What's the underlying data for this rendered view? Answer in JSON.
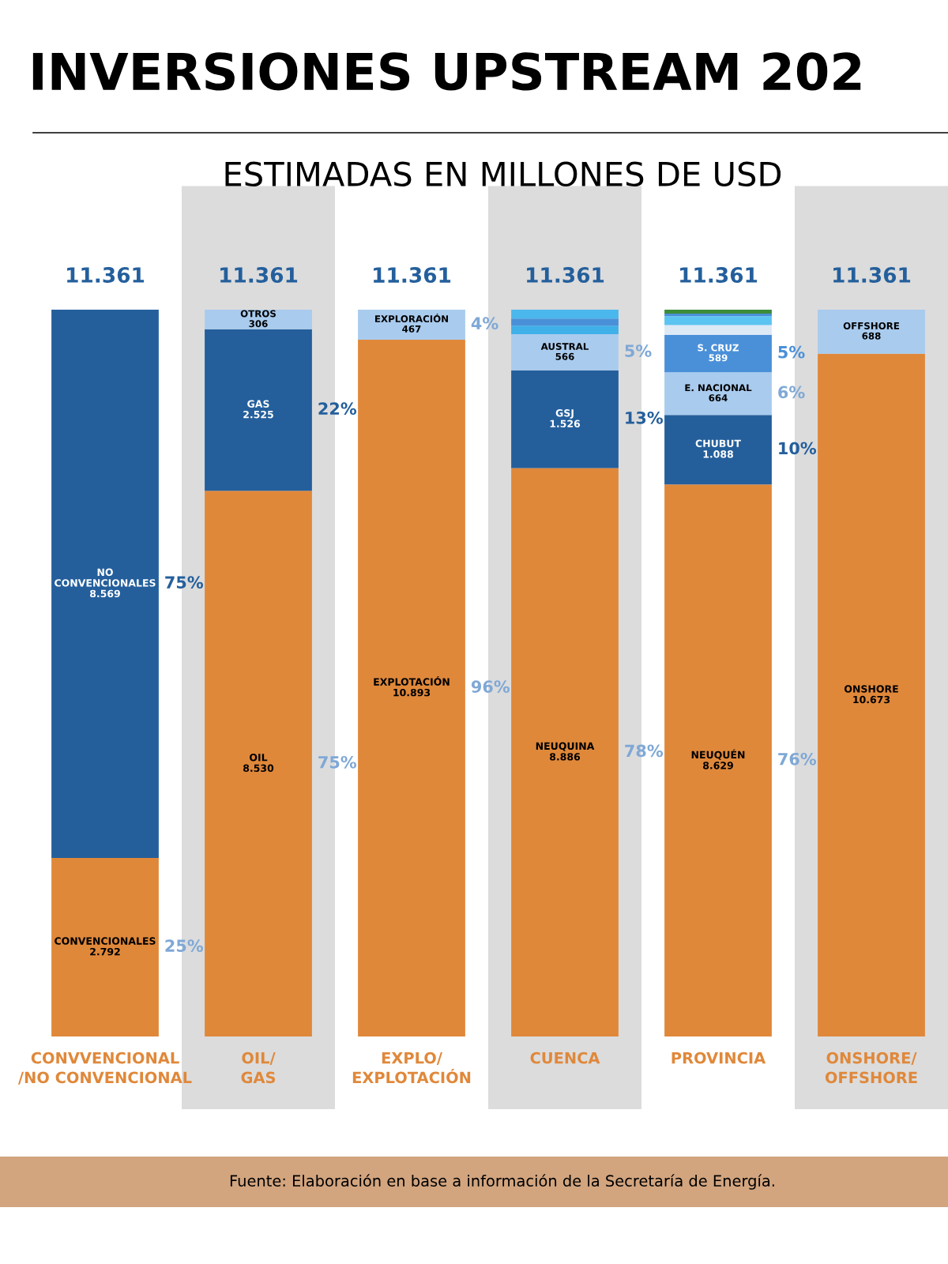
{
  "chart_data": {
    "type": "bar",
    "stacked": true,
    "title": "INVERSIONES UPSTREAM 202",
    "subtitle": "ESTIMADAS EN MILLONES DE USD",
    "categories": [
      "CONVVENCIONAL\n/NO CONVENCIONAL",
      "OIL/\nGAS",
      "EXPLO/\nEXPLOTACIÓN",
      "CUENCA",
      "PROVINCIA",
      "ONSHORE/\nOFFSHORE"
    ],
    "tick_labels": false,
    "grid": false,
    "series": [
      {
        "values": [
          2792,
          8530,
          10893,
          8886,
          8629,
          10673
        ],
        "colors": [
          "#e0883a",
          "#e0883a",
          "#e0883a",
          "#e0883a",
          "#e0883a",
          "#e0883a"
        ],
        "value_labels": [
          "CONVENCIONALES\n2.792",
          "OIL\n8.530",
          "EXPLOTACIÓN\n10.893",
          "NEUQUINA\n8.886",
          "NEUQUÉN\n8.629",
          "ONSHORE\n10.673"
        ]
      },
      {
        "values": [
          8569,
          2525,
          467,
          1526,
          1088,
          688
        ],
        "colors": [
          "#245f9c",
          "#245f9c",
          "#a9cbee",
          "#245f9c",
          "#245f9c",
          "#a9cbee"
        ],
        "value_labels": [
          "NO\nCONVENCIONALES\n8.569",
          "GAS\n2.525",
          "EXPLORACIÓN\n467",
          "GSJ\n1.526",
          "CHUBUT\n1.088",
          "OFFSHORE\n688"
        ]
      },
      {
        "values": [
          null,
          306,
          null,
          566,
          664,
          null
        ],
        "colors": [
          null,
          "#a9cbee",
          null,
          "#a9cbee",
          "#a9cbee",
          null
        ],
        "value_labels": [
          null,
          "OTROS\n306",
          null,
          "AUSTRAL\n566",
          "E. NACIONAL\n664",
          null
        ]
      },
      {
        "values": [
          null,
          null,
          null,
          133,
          589,
          null
        ],
        "colors": [
          null,
          null,
          null,
          "#3fb0e8",
          "#4a90d9",
          null
        ],
        "value_labels": [
          null,
          null,
          null,
          null,
          "S. CRUZ\n589",
          null
        ]
      },
      {
        "values": [
          null,
          null,
          null,
          110,
          150,
          null
        ],
        "colors": [
          null,
          null,
          null,
          "#4a90d9",
          "#dde9f5",
          null
        ]
      },
      {
        "values": [
          null,
          null,
          null,
          140,
          140,
          null
        ],
        "colors": [
          null,
          null,
          null,
          "#4ab8ec",
          "#5cc4f0",
          null
        ]
      },
      {
        "values": [
          null,
          null,
          null,
          null,
          40,
          null
        ],
        "colors": [
          null,
          null,
          null,
          null,
          "#4a90d9",
          null
        ]
      },
      {
        "values": [
          null,
          null,
          null,
          null,
          61,
          null
        ],
        "colors": [
          null,
          null,
          null,
          null,
          "#3d8c3a",
          null
        ]
      }
    ],
    "totals": [
      "11.361",
      "11.361",
      "11.361",
      "11.361",
      "11.361",
      "11.361"
    ],
    "annotations": [
      "25%",
      "75%",
      "75%",
      "22%",
      "96%",
      "4%",
      "78%",
      "13%",
      "5%",
      "76%",
      "10%",
      "6%",
      "5%",
      "Fuente: Elaboración en base a información de la Secretaría de Energía."
    ]
  }
}
